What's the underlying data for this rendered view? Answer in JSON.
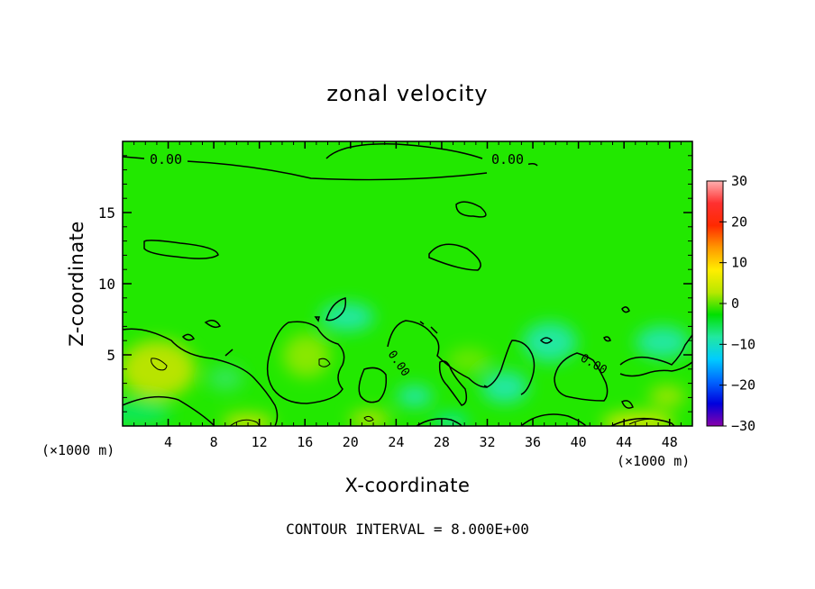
{
  "chart_data": {
    "type": "heatmap",
    "title": "zonal velocity",
    "xlabel": "X-coordinate",
    "ylabel": "Z-coordinate",
    "x_units": "(×1000 m)",
    "y_units": "(×1000 m)",
    "x_range": [
      0,
      50
    ],
    "y_range": [
      0,
      20
    ],
    "x_ticks": [
      4,
      8,
      12,
      16,
      20,
      24,
      28,
      32,
      36,
      40,
      44,
      48
    ],
    "y_ticks": [
      5,
      10,
      15
    ],
    "colorbar": {
      "range": [
        -30,
        30
      ],
      "ticks": [
        30,
        20,
        10,
        0,
        -10,
        -20,
        -30
      ],
      "tick_labels": [
        "30",
        "20",
        "10",
        "0",
        "−10",
        "−20",
        "−30"
      ],
      "colors": [
        "#8800aa",
        "#0000dd",
        "#0066ff",
        "#00ccff",
        "#22e8a0",
        "#00e000",
        "#b8e800",
        "#ffee00",
        "#ff9900",
        "#ff2a00",
        "#ff3030",
        "#ffb0b0"
      ]
    },
    "contour_labels": [
      {
        "text": "0.00",
        "x": 3.8,
        "y": 18.5
      },
      {
        "text": "0.00",
        "x": 33.2,
        "y": 18.5
      },
      {
        "text": "0.00",
        "x": 23.9,
        "y": 4.3
      },
      {
        "text": "0.00",
        "x": 41.6,
        "y": 4.3
      }
    ],
    "footer": "CONTOUR INTERVAL = 8.000E+00"
  }
}
